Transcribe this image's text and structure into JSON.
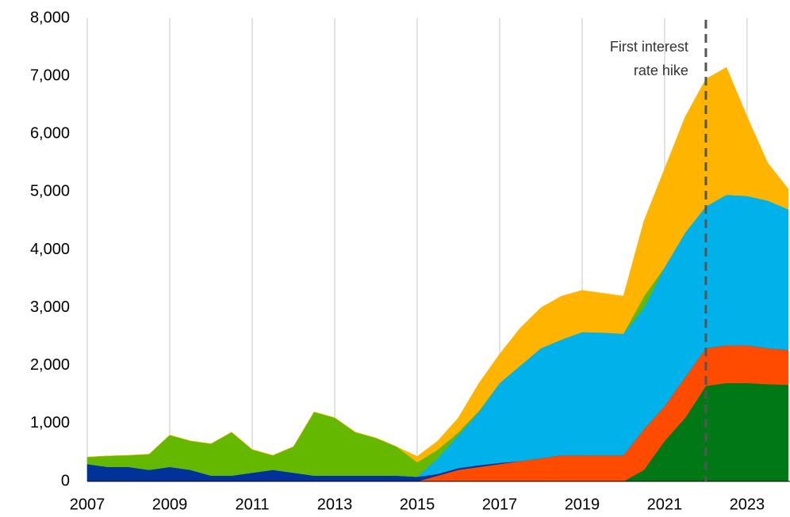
{
  "chart_data": {
    "type": "stacked_area",
    "x": [
      2007,
      2007.5,
      2008,
      2008.5,
      2009,
      2009.5,
      2010,
      2010.5,
      2011,
      2011.5,
      2012,
      2012.5,
      2013,
      2013.5,
      2014,
      2014.5,
      2015,
      2015.5,
      2016,
      2016.5,
      2017,
      2017.5,
      2018,
      2018.5,
      2019,
      2019.5,
      2020,
      2020.5,
      2021,
      2021.5,
      2022,
      2022.5,
      2023,
      2023.5,
      2024
    ],
    "series": [
      {
        "color": "#007816",
        "values": [
          0,
          0,
          0,
          0,
          0,
          0,
          0,
          0,
          0,
          0,
          0,
          0,
          0,
          0,
          0,
          0,
          0,
          0,
          0,
          0,
          0,
          0,
          0,
          0,
          0,
          0,
          0,
          200,
          700,
          1100,
          1650,
          1700,
          1700,
          1680,
          1670
        ]
      },
      {
        "color": "#ff4b00",
        "values": [
          0,
          0,
          0,
          0,
          0,
          0,
          0,
          0,
          0,
          0,
          0,
          0,
          0,
          0,
          0,
          0,
          0,
          100,
          200,
          250,
          300,
          350,
          400,
          450,
          450,
          450,
          450,
          700,
          600,
          700,
          650,
          650,
          650,
          620,
          600
        ]
      },
      {
        "color": "#003299",
        "values": [
          300,
          250,
          250,
          200,
          250,
          200,
          100,
          100,
          150,
          200,
          150,
          100,
          100,
          100,
          100,
          100,
          80,
          30,
          30,
          30,
          20,
          0,
          0,
          0,
          0,
          0,
          0,
          0,
          0,
          0,
          0,
          0,
          0,
          0,
          0
        ]
      },
      {
        "color": "#00b1ea",
        "values": [
          0,
          0,
          0,
          0,
          0,
          0,
          0,
          0,
          0,
          0,
          0,
          0,
          0,
          0,
          0,
          0,
          0,
          270,
          570,
          920,
          1380,
          1650,
          1900,
          2000,
          2130,
          2120,
          2100,
          2100,
          2400,
          2500,
          2450,
          2600,
          2580,
          2550,
          2430
        ]
      },
      {
        "color": "#65b800",
        "values": [
          120,
          190,
          200,
          270,
          550,
          500,
          550,
          750,
          400,
          250,
          450,
          1100,
          1000,
          750,
          650,
          500,
          250,
          150,
          50,
          20,
          0,
          0,
          0,
          0,
          0,
          0,
          0,
          200,
          0,
          0,
          0,
          0,
          0,
          0,
          0
        ]
      },
      {
        "color": "#ffb400",
        "values": [
          0,
          0,
          0,
          0,
          0,
          0,
          0,
          0,
          0,
          0,
          0,
          0,
          0,
          0,
          0,
          0,
          100,
          150,
          250,
          480,
          500,
          650,
          700,
          750,
          720,
          680,
          650,
          1300,
          1700,
          2000,
          2200,
          2200,
          1370,
          650,
          350
        ]
      }
    ],
    "xlim": [
      2007,
      2024.04
    ],
    "xticks": [
      2007,
      2009,
      2011,
      2013,
      2015,
      2017,
      2019,
      2021,
      2023
    ],
    "ylim": [
      0,
      8000
    ],
    "yticks": [
      0,
      {
        "value": 1000,
        "label": "1,000"
      },
      {
        "value": 2000,
        "label": "2,000"
      },
      {
        "value": 3000,
        "label": "3,000"
      },
      {
        "value": 4000,
        "label": "4,000"
      },
      {
        "value": 5000,
        "label": "5,000"
      },
      {
        "value": 6000,
        "label": "6,000"
      },
      {
        "value": 7000,
        "label": "7,000"
      },
      {
        "value": 8000,
        "label": "8,000"
      }
    ],
    "grid": "x",
    "annotation": {
      "lines": [
        "First interest",
        "rate hike"
      ],
      "x": 2022
    }
  }
}
